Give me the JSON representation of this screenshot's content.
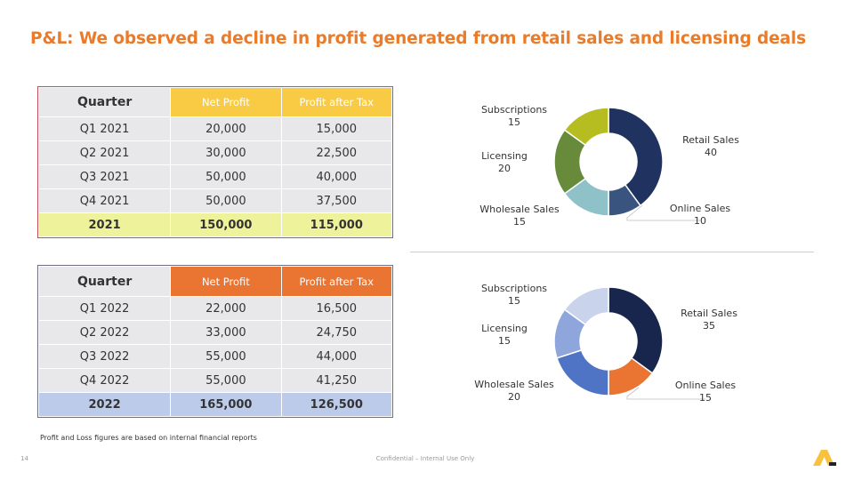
{
  "title": "P&L: We observed a decline in profit generated from retail sales and licensing deals",
  "table_2021": {
    "headers": [
      "Quarter",
      "Net Profit",
      "Profit after Tax"
    ],
    "rows": [
      [
        "Q1 2021",
        "20,000",
        "15,000"
      ],
      [
        "Q2 2021",
        "30,000",
        "22,500"
      ],
      [
        "Q3 2021",
        "50,000",
        "40,000"
      ],
      [
        "Q4 2021",
        "50,000",
        "37,500"
      ]
    ],
    "total": [
      "2021",
      "150,000",
      "115,000"
    ]
  },
  "table_2022": {
    "headers": [
      "Quarter",
      "Net Profit",
      "Profit after Tax"
    ],
    "rows": [
      [
        "Q1 2022",
        "22,000",
        "16,500"
      ],
      [
        "Q2 2022",
        "33,000",
        "24,750"
      ],
      [
        "Q3 2022",
        "55,000",
        "44,000"
      ],
      [
        "Q4 2022",
        "55,000",
        "41,250"
      ]
    ],
    "total": [
      "2022",
      "165,000",
      "126,500"
    ]
  },
  "note": "Profit and Loss figures are based on internal financial reports",
  "footer": "Confidential – Internal Use Only",
  "page_number": "14",
  "colors": {
    "title": "#e97b2b",
    "header_2021": "#f9cb45",
    "header_2022": "#ea7431",
    "total_2021": "#eef29a",
    "total_2022": "#bccbe9"
  },
  "chart_data": [
    {
      "type": "pie",
      "donut": true,
      "categories": [
        "Retail Sales",
        "Online Sales",
        "Wholesale Sales",
        "Licensing",
        "Subscriptions"
      ],
      "values": [
        40,
        10,
        15,
        20,
        15
      ],
      "colors": [
        "#20325f",
        "#39557f",
        "#8fc1c8",
        "#678b3a",
        "#b6bd21"
      ]
    },
    {
      "type": "pie",
      "donut": true,
      "categories": [
        "Retail Sales",
        "Online Sales",
        "Wholesale Sales",
        "Licensing",
        "Subscriptions"
      ],
      "values": [
        35,
        15,
        20,
        15,
        15
      ],
      "colors": [
        "#18254d",
        "#ea7431",
        "#4f74c6",
        "#8ea6dc",
        "#c9d3ec"
      ]
    }
  ]
}
